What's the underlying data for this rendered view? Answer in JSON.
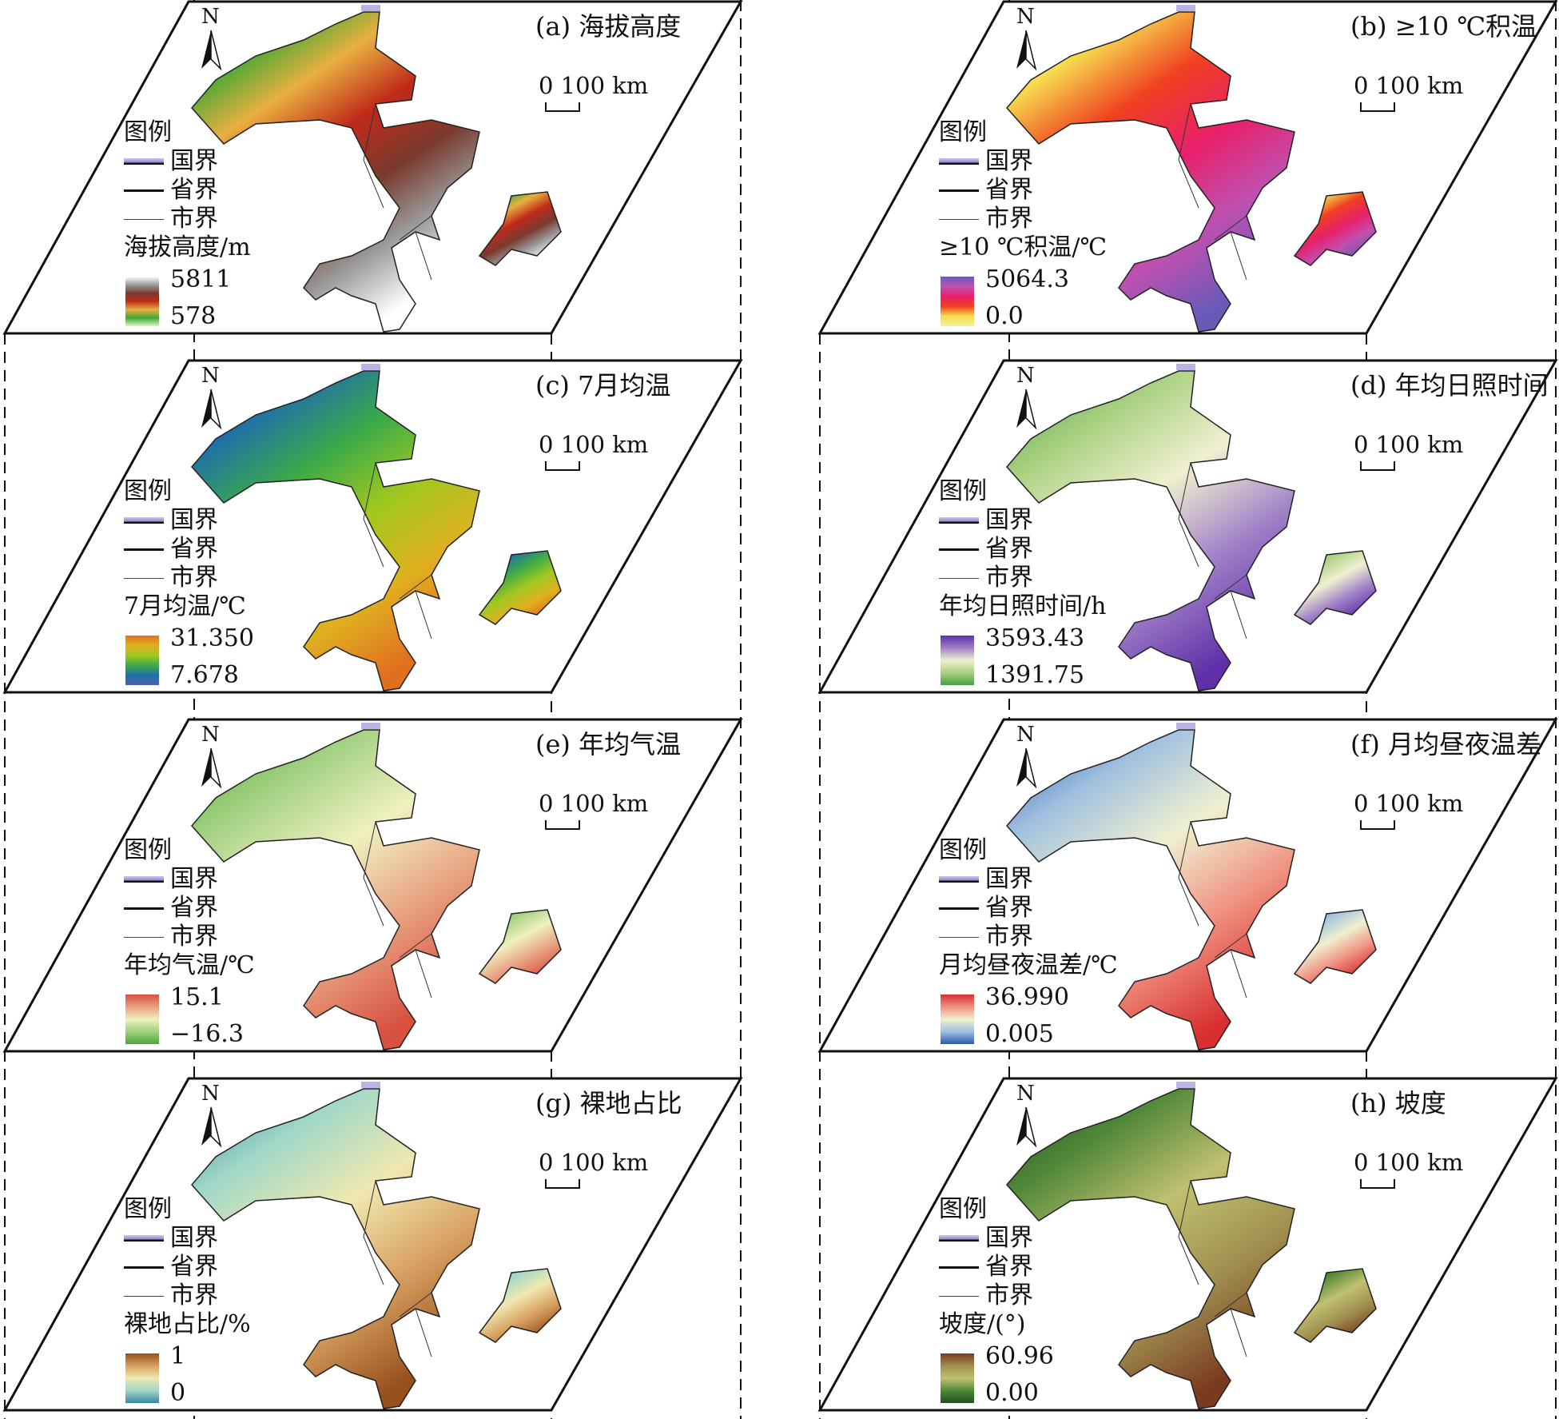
{
  "common": {
    "legend_heading": "图例",
    "national_border": "国界",
    "provincial_border": "省界",
    "city_border": "市界",
    "north": "N",
    "scale": "0 100 km"
  },
  "panels": [
    {
      "label": "(a) 海拔高度",
      "legend_title": "海拔高度/m",
      "max": "5811",
      "min": "578",
      "ramp": [
        "#ffffff",
        "#9a9a9a",
        "#7a3a2e",
        "#c02a1a",
        "#e8b040",
        "#3ea836",
        "#e0f5c0"
      ]
    },
    {
      "label": "(b) ≥10 ℃积温",
      "legend_title": "≥10 ℃积温/℃",
      "max": "5064.3",
      "min": "0.0",
      "ramp": [
        "#6a5ab8",
        "#c050b0",
        "#e8206a",
        "#f04020",
        "#f6e050",
        "#f0f0a0"
      ]
    },
    {
      "label": "(c) 7月均温",
      "legend_title": "7月均温/℃",
      "max": "31.350",
      "min": "7.678",
      "ramp": [
        "#e07020",
        "#e0b020",
        "#a0c820",
        "#3caa48",
        "#2070a8",
        "#5060b0"
      ]
    },
    {
      "label": "(d) 年均日照时间",
      "legend_title": "年均日照时间/h",
      "max": "3593.43",
      "min": "1391.75",
      "ramp": [
        "#6030a8",
        "#a080c8",
        "#f0f0d0",
        "#a8d080",
        "#48a048"
      ]
    },
    {
      "label": "(e) 年均气温",
      "legend_title": "年均气温/℃",
      "max": "15.1",
      "min": "−16.3",
      "ramp": [
        "#d85040",
        "#e8a080",
        "#f0f0c0",
        "#a0d080",
        "#48a838"
      ]
    },
    {
      "label": "(f) 月均昼夜温差",
      "legend_title": "月均昼夜温差/℃",
      "max": "36.990",
      "min": "0.005",
      "ramp": [
        "#d83030",
        "#f09080",
        "#f0f0d0",
        "#a0c0e0",
        "#2858b0"
      ]
    },
    {
      "label": "(g) 裸地占比",
      "legend_title": "裸地占比/%",
      "max": "1",
      "min": "0",
      "ramp": [
        "#98501c",
        "#d8a060",
        "#f0e8b0",
        "#a0d8c8",
        "#3888a0"
      ]
    },
    {
      "label": "(h) 坡度",
      "legend_title": "坡度/(°)",
      "max": "60.96",
      "min": "0.00",
      "ramp": [
        "#7a3a20",
        "#a09050",
        "#c0c070",
        "#508838",
        "#1e5020"
      ]
    }
  ]
}
